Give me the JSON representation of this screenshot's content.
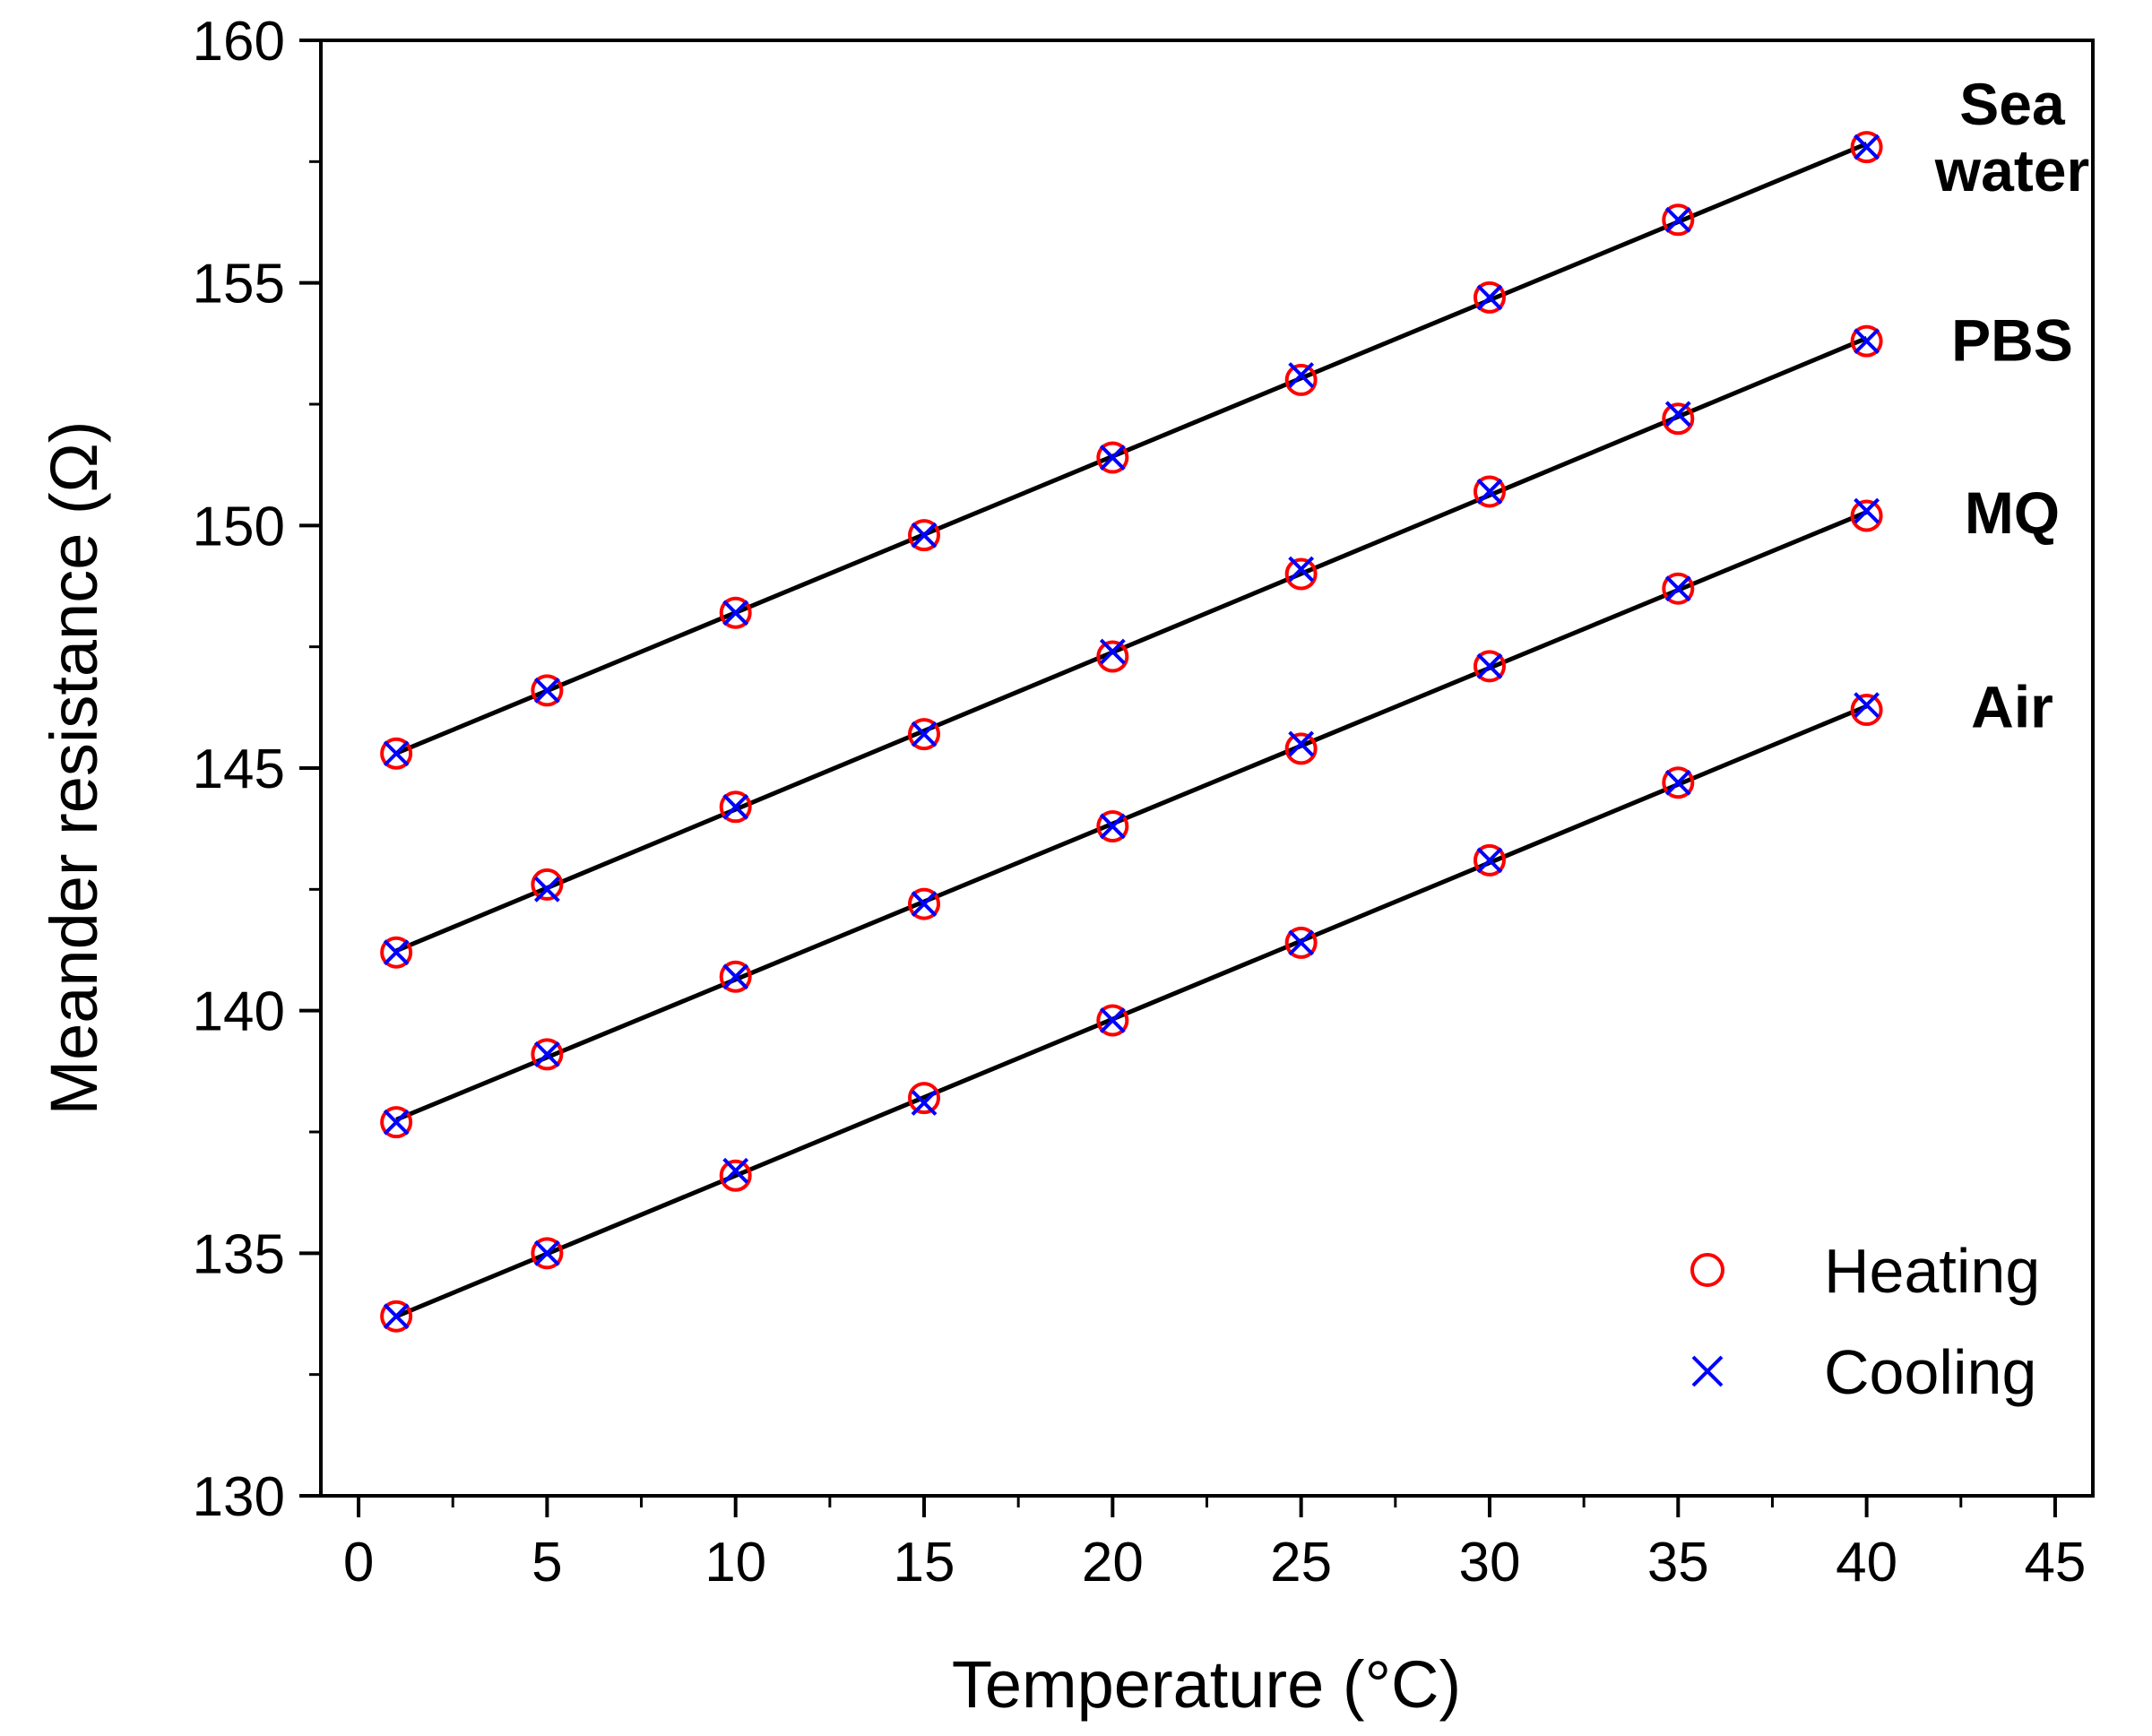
{
  "chart_data": {
    "type": "scatter",
    "xlabel": "Temperature (°C)",
    "ylabel": "Meander resistance (Ω)",
    "xlim": [
      -1,
      46
    ],
    "ylim": [
      130,
      160
    ],
    "x_ticks": [
      0,
      5,
      10,
      15,
      20,
      25,
      30,
      35,
      40,
      45
    ],
    "y_ticks": [
      130,
      135,
      140,
      145,
      150,
      155,
      160
    ],
    "x": [
      1,
      5,
      10,
      15,
      20,
      25,
      30,
      35,
      40
    ],
    "legend": {
      "position": "bottom-right",
      "entries": [
        {
          "name": "Heating",
          "marker": "circle",
          "color": "#ff0000"
        },
        {
          "name": "Cooling",
          "marker": "x",
          "color": "#0000ff"
        }
      ]
    },
    "fit_line_color": "#000000",
    "series": [
      {
        "name": "Sea water",
        "label_lines": [
          "Sea",
          "water"
        ],
        "heating": [
          145.3,
          146.6,
          148.2,
          149.8,
          151.4,
          153.0,
          154.7,
          156.3,
          157.8
        ],
        "cooling": [
          145.3,
          146.6,
          148.2,
          149.8,
          151.4,
          153.1,
          154.7,
          156.3,
          157.8
        ]
      },
      {
        "name": "PBS",
        "label_lines": [
          "PBS"
        ],
        "heating": [
          141.2,
          142.6,
          144.2,
          145.7,
          147.3,
          149.0,
          150.7,
          152.2,
          153.8
        ],
        "cooling": [
          141.2,
          142.5,
          144.2,
          145.7,
          147.4,
          149.1,
          150.7,
          152.3,
          153.8
        ]
      },
      {
        "name": "MQ",
        "label_lines": [
          "MQ"
        ],
        "heating": [
          137.7,
          139.1,
          140.7,
          142.2,
          143.8,
          145.4,
          147.1,
          148.7,
          150.2
        ],
        "cooling": [
          137.7,
          139.1,
          140.7,
          142.2,
          143.8,
          145.5,
          147.1,
          148.7,
          150.3
        ]
      },
      {
        "name": "Air",
        "label_lines": [
          "Air"
        ],
        "heating": [
          133.7,
          135.0,
          136.6,
          138.2,
          139.8,
          141.4,
          143.1,
          144.7,
          146.2
        ],
        "cooling": [
          133.7,
          135.0,
          136.7,
          138.1,
          139.8,
          141.4,
          143.1,
          144.7,
          146.3
        ]
      }
    ]
  }
}
